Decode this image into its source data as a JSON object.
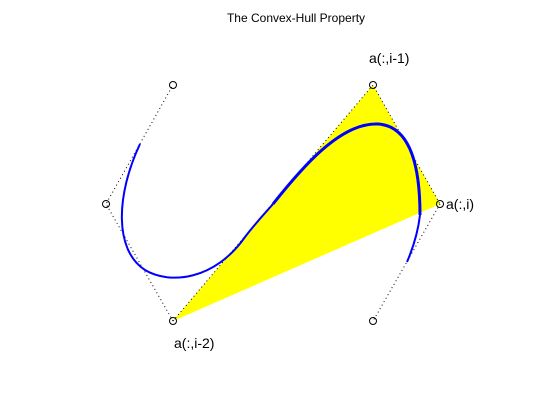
{
  "title": "The Convex-Hull Property",
  "labels": {
    "point_prev": "a(:,i-1)",
    "point_cur": "a(:,i)",
    "point_prev2": "a(:,i-2)"
  },
  "colors": {
    "hull_fill": "#ffff00",
    "curve": "#0000ff",
    "control_polygon": "#000000",
    "control_point": "#000000",
    "background": "#ffffff"
  }
}
